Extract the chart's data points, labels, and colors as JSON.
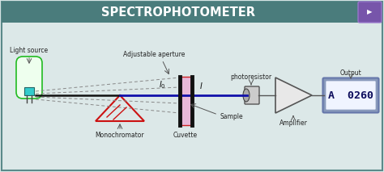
{
  "title": "SPECTROPHOTOMETER",
  "title_bg": "#4a7c7c",
  "title_color": "#ffffff",
  "bg_color": "#dce8e8",
  "border_color": "#5a8a8a",
  "labels": {
    "light_source": "Light source",
    "adjustable_aperture": "Adjustable aperture",
    "monochromator": "Monochromator",
    "cuvette": "Cuvette",
    "sample": "Sample",
    "photoresistor": "photoresistor",
    "amplifier": "Amplifier",
    "output": "Output",
    "I0": "$I_0$",
    "I": "$I$"
  },
  "display_text": "A  0260",
  "display_bg": "#b8cce4",
  "display_fg": "#f0f4ff",
  "display_text_color": "#0a0a5a",
  "beam_color": "#1010aa",
  "cuvette_fill": "#e8b8d8",
  "cuvette_border": "#cc2222",
  "mono_color": "#cc1111",
  "light_body_color": "#eeffee",
  "light_border_color": "#22bb22",
  "light_base_color": "#33cccc",
  "wire_color": "#555555",
  "label_color": "#222222",
  "dashed_color": "#888888",
  "amp_fill": "#e8e8e8",
  "amp_edge": "#555555"
}
